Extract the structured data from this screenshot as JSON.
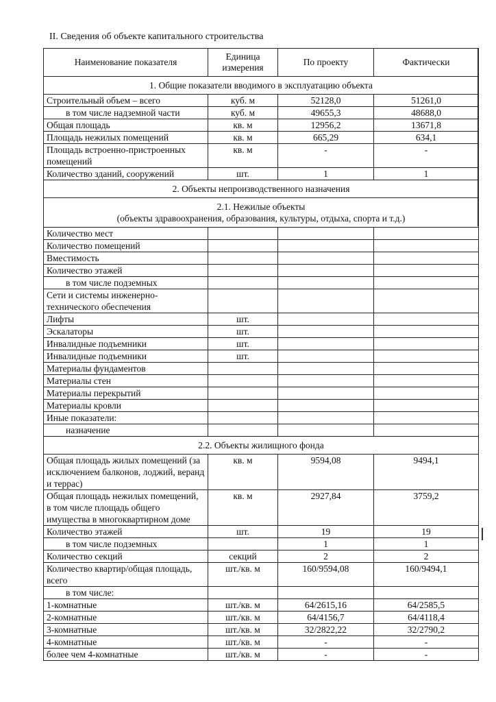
{
  "title": "II. Сведения об объекте капитального строительства",
  "headers": [
    "Наименование показателя",
    "Единица измерения",
    "По проекту",
    "Фактически"
  ],
  "rows": [
    {
      "section": "1. Общие показатели вводимого в эксплуатацию объекта"
    },
    {
      "label": "Строительный объем – всего",
      "unit": "куб. м",
      "project": "52128,0",
      "actual": "51261,0"
    },
    {
      "label": "в том числе надземной части",
      "unit": "куб. м",
      "project": "49655,3",
      "actual": "48688,0",
      "sub": true
    },
    {
      "label": "Общая площадь",
      "unit": "кв. м",
      "project": "12956,2",
      "actual": "13671,8"
    },
    {
      "label": "Площадь нежилых помещений",
      "unit": "кв. м",
      "project": "665,29",
      "actual": "634,1"
    },
    {
      "label": "Площадь встроенно-пристроенных помещений",
      "unit": "кв. м",
      "project": "-",
      "actual": "-"
    },
    {
      "label": "Количество зданий, сооружений",
      "unit": "шт.",
      "project": "1",
      "actual": "1"
    },
    {
      "section": "2. Объекты непроизводственного назначения"
    },
    {
      "section": "2.1. Нежилые объекты",
      "section2": "(объекты здравоохранения, образования, культуры, отдыха, спорта и т.д.)"
    },
    {
      "label": "Количество мест",
      "unit": "",
      "project": "",
      "actual": ""
    },
    {
      "label": "Количество помещений",
      "unit": "",
      "project": "",
      "actual": ""
    },
    {
      "label": "Вместимость",
      "unit": "",
      "project": "",
      "actual": ""
    },
    {
      "label": "Количество этажей",
      "unit": "",
      "project": "",
      "actual": ""
    },
    {
      "label": "в том числе подземных",
      "unit": "",
      "project": "",
      "actual": "",
      "sub": true
    },
    {
      "label": "Сети и системы инженерно-технического обеспечения",
      "unit": "",
      "project": "",
      "actual": ""
    },
    {
      "label": "Лифты",
      "unit": "шт.",
      "project": "",
      "actual": ""
    },
    {
      "label": "Эскалаторы",
      "unit": "шт.",
      "project": "",
      "actual": ""
    },
    {
      "label": "Инвалидные подъемники",
      "unit": "шт.",
      "project": "",
      "actual": ""
    },
    {
      "label": "Инвалидные подъемники",
      "unit": "шт.",
      "project": "",
      "actual": ""
    },
    {
      "label": "Материалы фундаментов",
      "unit": "",
      "project": "",
      "actual": ""
    },
    {
      "label": "Материалы стен",
      "unit": "",
      "project": "",
      "actual": ""
    },
    {
      "label": "Материалы перекрытий",
      "unit": "",
      "project": "",
      "actual": ""
    },
    {
      "label": "Материалы кровли",
      "unit": "",
      "project": "",
      "actual": ""
    },
    {
      "label": "Иные показатели:",
      "unit": "",
      "project": "",
      "actual": ""
    },
    {
      "label": "назначение",
      "unit": "",
      "project": "",
      "actual": "",
      "sub": true
    },
    {
      "section": "2.2. Объекты жилищного фонда"
    },
    {
      "label": "Общая площадь жилых помещений (за исключением балконов, лоджий, веранд и террас)",
      "unit": "кв. м",
      "project": "9594,08",
      "actual": "9494,1"
    },
    {
      "label": "Общая площадь нежилых помещений, в том числе площадь общего имущества в многоквартирном доме",
      "unit": "кв. м",
      "project": "2927,84",
      "actual": "3759,2"
    },
    {
      "label": "Количество этажей",
      "unit": "шт.",
      "project": "19",
      "actual": "19"
    },
    {
      "label": "в том числе подземных",
      "unit": "",
      "project": "1",
      "actual": "1",
      "sub": true
    },
    {
      "label": "Количество секций",
      "unit": "секций",
      "project": "2",
      "actual": "2"
    },
    {
      "label": "Количество квартир/общая площадь, всего",
      "unit": "шт./кв. м",
      "project": "160/9594,08",
      "actual": "160/9494,1"
    },
    {
      "label": "в том числе:",
      "unit": "",
      "project": "",
      "actual": "",
      "sub": true
    },
    {
      "label": "1-комнатные",
      "unit": "шт./кв. м",
      "project": "64/2615,16",
      "actual": "64/2585,5"
    },
    {
      "label": "2-комнатные",
      "unit": "шт./кв. м",
      "project": "64/4156,7",
      "actual": "64/4118,4"
    },
    {
      "label": "3-комнатные",
      "unit": "шт./кв. м",
      "project": "32/2822,22",
      "actual": "32/2790,2"
    },
    {
      "label": "4-комнатные",
      "unit": "шт./кв. м",
      "project": "-",
      "actual": "-"
    },
    {
      "label": "более чем 4-комнатные",
      "unit": "шт./кв. м",
      "project": "-",
      "actual": "-"
    }
  ]
}
